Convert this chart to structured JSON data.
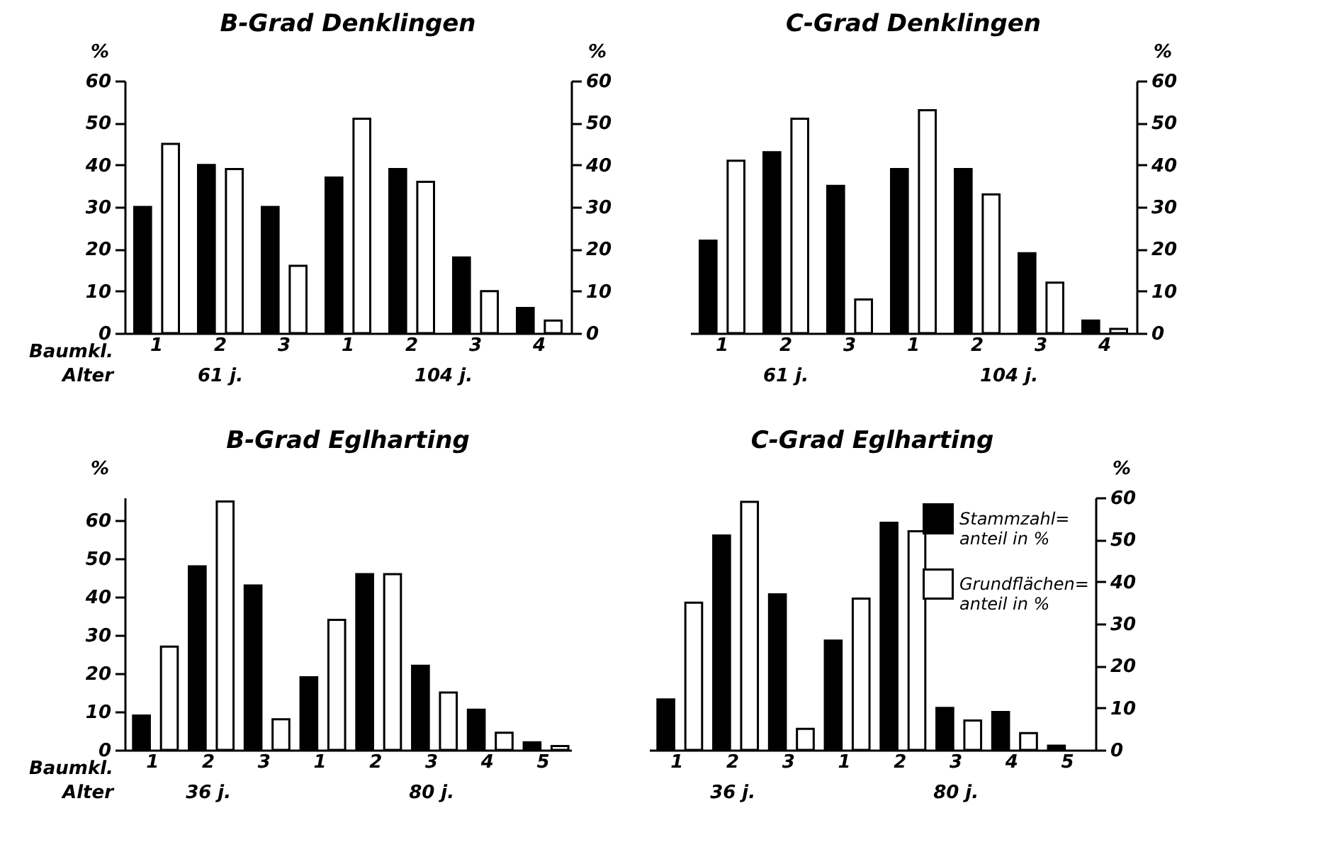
{
  "chart_data": [
    {
      "type": "bar",
      "title": "B-Grad Denklingen",
      "ylabel": "%",
      "y2label": "%",
      "categories": [
        "1",
        "2",
        "3",
        "1",
        "2",
        "3",
        "4"
      ],
      "ylim": [
        0,
        60
      ],
      "yticks": [
        0,
        10,
        20,
        30,
        40,
        50,
        60
      ],
      "y2lim": [
        0,
        60
      ],
      "y2ticks": [
        0,
        10,
        20,
        30,
        40,
        50,
        60
      ],
      "legend": false,
      "series": [
        {
          "color": "#000000",
          "values": [
            30,
            40,
            30,
            37,
            39,
            18,
            6
          ]
        },
        {
          "color": "#ffffff",
          "values": [
            45,
            39,
            16,
            51,
            36,
            10,
            3
          ]
        }
      ],
      "annotations": [
        "Baumkl.",
        "Alter",
        "61 j.",
        "104 j."
      ]
    },
    {
      "type": "bar",
      "title": "C-Grad Denklingen",
      "y2label": "%",
      "categories": [
        "1",
        "2",
        "3",
        "1",
        "2",
        "3",
        "4"
      ],
      "y2lim": [
        0,
        60
      ],
      "y2ticks": [
        0,
        10,
        20,
        30,
        40,
        50,
        60
      ],
      "legend": false,
      "series": [
        {
          "color": "#000000",
          "axis": "y2",
          "values": [
            22,
            43,
            35,
            39,
            39,
            19,
            3
          ]
        },
        {
          "color": "#ffffff",
          "axis": "y2",
          "values": [
            41,
            51,
            8,
            53,
            33,
            12,
            1
          ]
        }
      ],
      "annotations": [
        "61 j.",
        "104 j."
      ]
    },
    {
      "type": "bar",
      "title": "B-Grad Eglharting",
      "ylabel": "%",
      "categories": [
        "1",
        "2",
        "3",
        "1",
        "2",
        "3",
        "4",
        "5"
      ],
      "ylim": [
        0,
        66
      ],
      "yticks": [
        0,
        10,
        20,
        30,
        40,
        50,
        60
      ],
      "legend": false,
      "series": [
        {
          "color": "#000000",
          "values": [
            9,
            48,
            43,
            19,
            46,
            22,
            10.5,
            2
          ]
        },
        {
          "color": "#ffffff",
          "values": [
            27,
            65,
            8,
            34,
            46,
            15,
            4.5,
            1
          ]
        }
      ],
      "annotations": [
        "Baumkl.",
        "Alter",
        "36 j.",
        "80 j."
      ]
    },
    {
      "type": "bar",
      "title": "C-Grad Eglharting",
      "y2label": "%",
      "categories": [
        "1",
        "2",
        "3",
        "1",
        "2",
        "3",
        "4",
        "5"
      ],
      "y2lim": [
        0,
        60
      ],
      "y2ticks": [
        0,
        10,
        20,
        30,
        40,
        50,
        60
      ],
      "legend": "top right",
      "series": [
        {
          "name": "Stammzahl=\nanteil in %",
          "color": "#000000",
          "axis": "y2",
          "values": [
            12,
            51,
            37,
            26,
            54,
            10,
            9,
            1
          ]
        },
        {
          "name": "Grundflächen=\nanteil in %",
          "color": "#ffffff",
          "axis": "y2",
          "values": [
            35,
            59,
            5,
            36,
            52,
            7,
            4,
            null
          ]
        }
      ],
      "annotations": [
        "36 j.",
        "80 j."
      ]
    }
  ]
}
